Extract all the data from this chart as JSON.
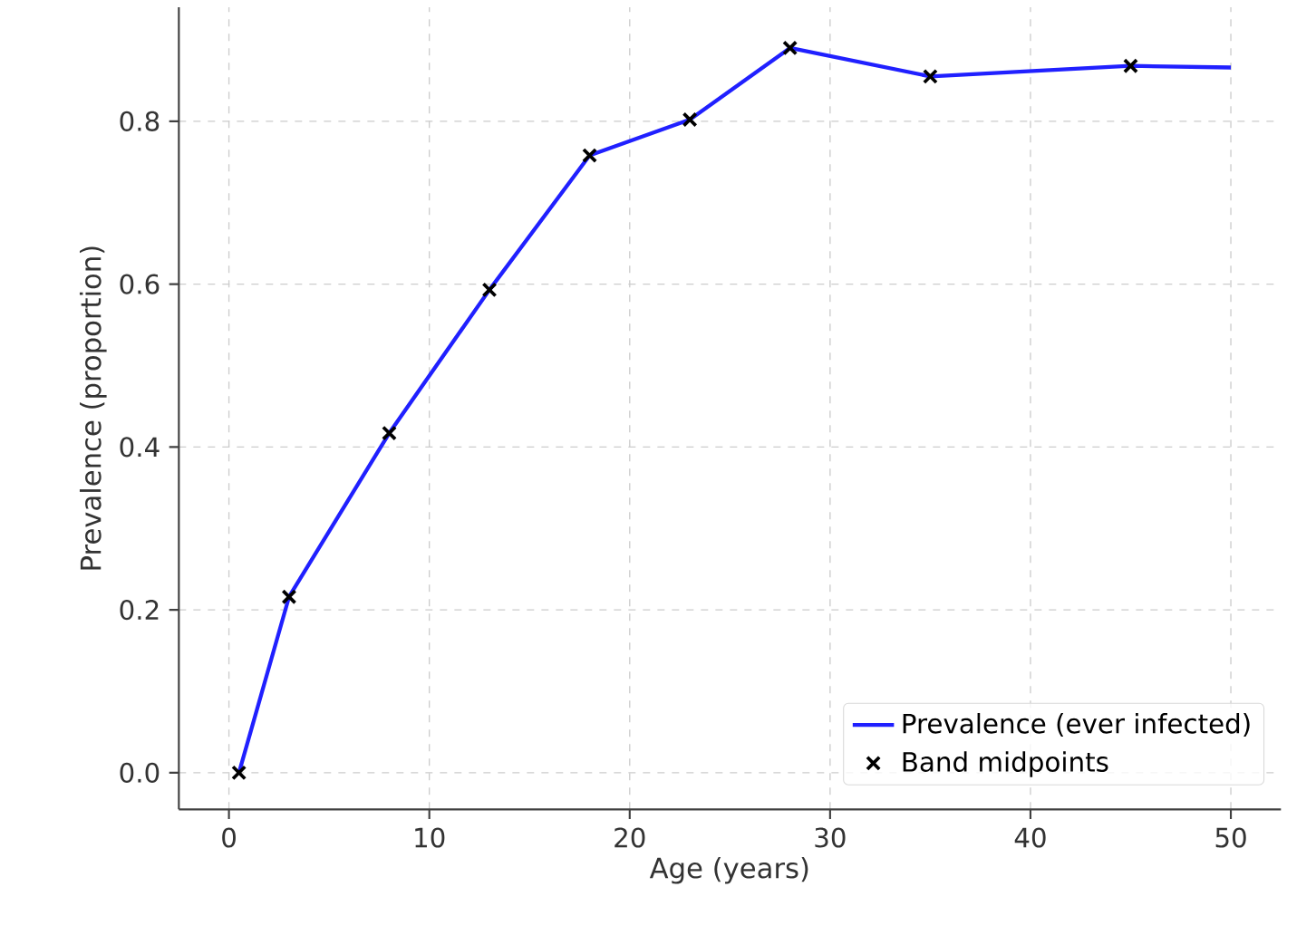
{
  "chart_data": {
    "type": "line",
    "xlabel": "Age (years)",
    "ylabel": "Prevalence (proportion)",
    "xlim": [
      -2.5,
      52.5
    ],
    "ylim": [
      -0.045,
      0.94
    ],
    "xticks": [
      0,
      10,
      20,
      30,
      40,
      50
    ],
    "yticks": [
      {
        "value": 0,
        "label": "0.0"
      },
      {
        "value": 0.2,
        "label": "0.2"
      },
      {
        "value": 0.4,
        "label": "0.4"
      },
      {
        "value": 0.6,
        "label": "0.6"
      },
      {
        "value": 0.8,
        "label": "0.8"
      }
    ],
    "grid": true,
    "legend": "bottom right",
    "series": [
      {
        "name": "Prevalence (ever infected)",
        "color": "#2020ff",
        "marker": "none",
        "line_style": "solid",
        "x": [
          0.5,
          3,
          8,
          13,
          18,
          23,
          28,
          35,
          45,
          50
        ],
        "values": [
          0,
          0.216,
          0.417,
          0.593,
          0.758,
          0.802,
          0.89,
          0.855,
          0.868,
          0.866
        ]
      },
      {
        "name": "Band midpoints",
        "type": "scatter",
        "color": "#000000",
        "marker": "cross",
        "x": [
          0.5,
          3,
          8,
          13,
          18,
          23,
          28,
          35,
          45
        ],
        "values": [
          0,
          0.216,
          0.417,
          0.593,
          0.758,
          0.802,
          0.89,
          0.855,
          0.868
        ]
      }
    ]
  }
}
